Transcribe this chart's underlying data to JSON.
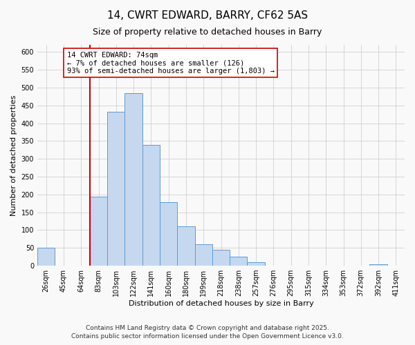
{
  "title": "14, CWRT EDWARD, BARRY, CF62 5AS",
  "subtitle": "Size of property relative to detached houses in Barry",
  "xlabel": "Distribution of detached houses by size in Barry",
  "ylabel": "Number of detached properties",
  "bin_labels": [
    "26sqm",
    "45sqm",
    "64sqm",
    "83sqm",
    "103sqm",
    "122sqm",
    "141sqm",
    "160sqm",
    "180sqm",
    "199sqm",
    "218sqm",
    "238sqm",
    "257sqm",
    "276sqm",
    "295sqm",
    "315sqm",
    "334sqm",
    "353sqm",
    "372sqm",
    "392sqm",
    "411sqm"
  ],
  "counts": [
    50,
    0,
    0,
    193,
    432,
    484,
    339,
    178,
    110,
    61,
    44,
    25,
    10,
    0,
    0,
    0,
    0,
    0,
    0,
    5,
    0
  ],
  "bar_color": "#c5d8f0",
  "bar_edge_color": "#5b9bd5",
  "vline_position": 3,
  "annotation_text": "14 CWRT EDWARD: 74sqm\n← 7% of detached houses are smaller (126)\n93% of semi-detached houses are larger (1,803) →",
  "annotation_box_color": "white",
  "annotation_box_edge_color": "#cc0000",
  "vline_color": "#cc0000",
  "ylim": [
    0,
    620
  ],
  "yticks": [
    0,
    50,
    100,
    150,
    200,
    250,
    300,
    350,
    400,
    450,
    500,
    550,
    600
  ],
  "footer_line1": "Contains HM Land Registry data © Crown copyright and database right 2025.",
  "footer_line2": "Contains public sector information licensed under the Open Government Licence v3.0.",
  "background_color": "#f9f9f9",
  "grid_color": "#d0d0d0",
  "title_fontsize": 11,
  "subtitle_fontsize": 9,
  "axis_label_fontsize": 8,
  "tick_fontsize": 7,
  "annotation_fontsize": 7.5,
  "footer_fontsize": 6.5
}
